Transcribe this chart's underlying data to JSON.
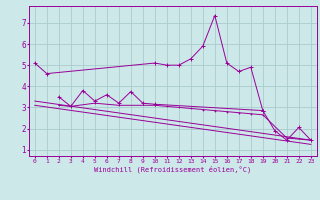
{
  "xlabel": "Windchill (Refroidissement éolien,°C)",
  "x": [
    0,
    1,
    2,
    3,
    4,
    5,
    6,
    7,
    8,
    9,
    10,
    11,
    12,
    13,
    14,
    15,
    16,
    17,
    18,
    19,
    20,
    21,
    22,
    23
  ],
  "line1": [
    5.1,
    4.6,
    null,
    null,
    null,
    null,
    null,
    null,
    null,
    null,
    5.1,
    5.0,
    5.0,
    5.3,
    5.9,
    7.35,
    5.1,
    4.7,
    4.9,
    2.85,
    null,
    null,
    null,
    null
  ],
  "line2": [
    null,
    null,
    3.5,
    3.05,
    3.8,
    3.3,
    3.6,
    3.2,
    3.75,
    3.2,
    3.15,
    null,
    null,
    null,
    null,
    null,
    null,
    null,
    null,
    2.85,
    1.9,
    1.45,
    2.05,
    1.45
  ],
  "line3": [
    null,
    null,
    3.1,
    3.05,
    null,
    3.2,
    null,
    3.1,
    null,
    null,
    3.1,
    3.05,
    3.0,
    2.95,
    2.9,
    2.85,
    2.8,
    2.75,
    2.7,
    2.65,
    null,
    1.55,
    null,
    1.45
  ],
  "line4": [
    [
      0,
      3.3
    ],
    [
      23,
      1.45
    ]
  ],
  "line5": [
    [
      0,
      3.1
    ],
    [
      23,
      1.25
    ]
  ],
  "bg_color": "#cce8e8",
  "line_color": "#990099",
  "grid_color": "#aacccc",
  "xlim": [
    -0.5,
    23.5
  ],
  "ylim": [
    0.7,
    7.8
  ],
  "yticks": [
    1,
    2,
    3,
    4,
    5,
    6,
    7
  ],
  "xticks": [
    0,
    1,
    2,
    3,
    4,
    5,
    6,
    7,
    8,
    9,
    10,
    11,
    12,
    13,
    14,
    15,
    16,
    17,
    18,
    19,
    20,
    21,
    22,
    23
  ]
}
